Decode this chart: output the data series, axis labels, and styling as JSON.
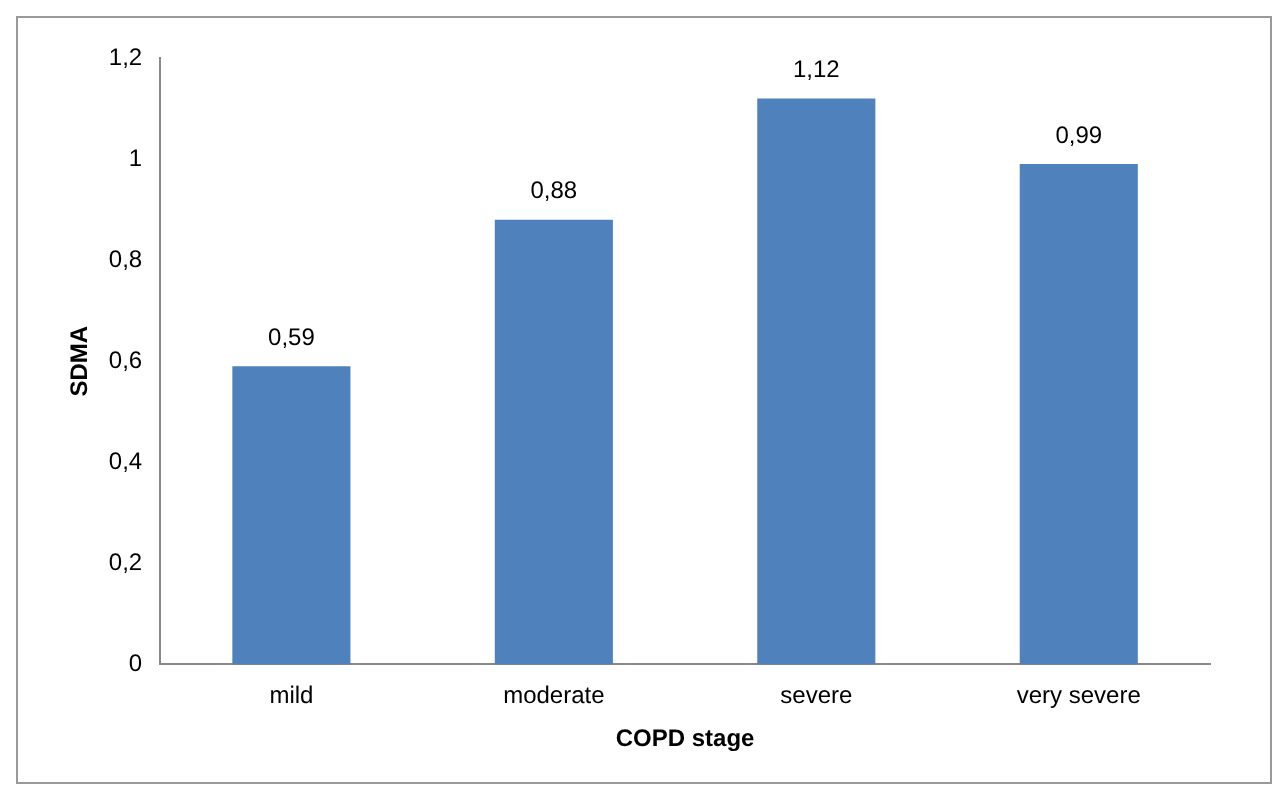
{
  "chart_data": {
    "type": "bar",
    "xlabel": "COPD stage",
    "ylabel": "SDMA",
    "categories": [
      "mild",
      "moderate",
      "severe",
      "very severe"
    ],
    "values": [
      0.59,
      0.88,
      1.12,
      0.99
    ],
    "value_labels": [
      "0,59",
      "0,88",
      "1,12",
      "0,99"
    ],
    "color": "#4f81bd",
    "ylim": [
      0,
      1.2
    ],
    "yticks": [
      0,
      {
        "value": 0.2,
        "label": "0,2"
      },
      {
        "value": 0.4,
        "label": "0,4"
      },
      {
        "value": 0.6,
        "label": "0,6"
      },
      {
        "value": 0.8,
        "label": "0,8"
      },
      1,
      {
        "value": 1.2,
        "label": "1,2"
      }
    ],
    "grid": false,
    "legend": false
  }
}
